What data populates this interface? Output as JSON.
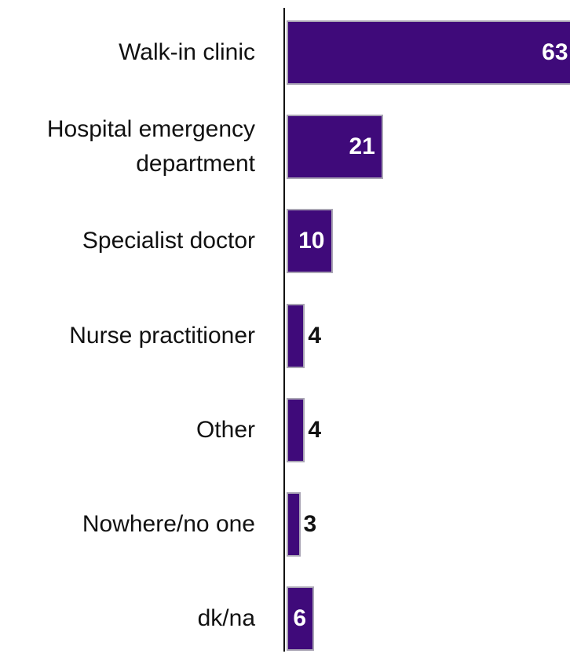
{
  "chart_data": {
    "type": "bar",
    "orientation": "horizontal",
    "categories": [
      "Walk-in clinic",
      "Hospital emergency department",
      "Specialist doctor",
      "Nurse practitioner",
      "Other",
      "Nowhere/no one",
      "dk/na"
    ],
    "values": [
      63,
      21,
      10,
      4,
      4,
      3,
      6
    ],
    "color": "#3f0a7a"
  }
}
